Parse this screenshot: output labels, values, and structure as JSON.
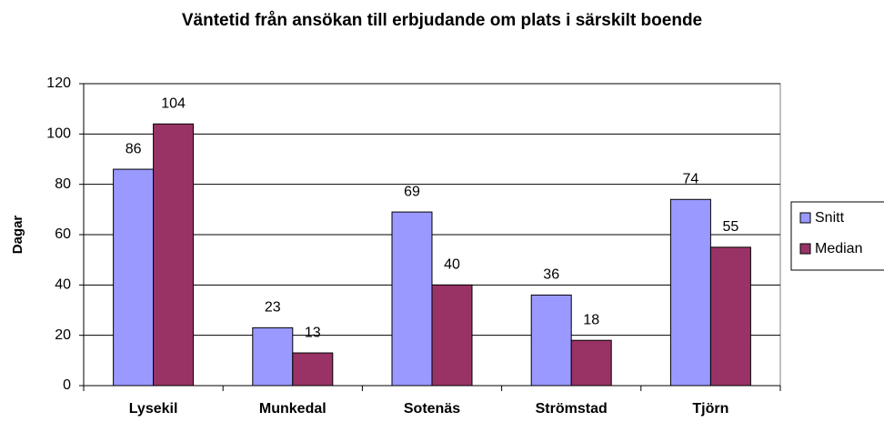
{
  "chart_data": {
    "type": "bar",
    "title": "Väntetid från ansökan till erbjudande om plats i särskilt boende",
    "y_label": "Dagar",
    "categories": [
      "Lysekil",
      "Munkedal",
      "Sotenäs",
      "Strömstad",
      "Tjörn"
    ],
    "series": [
      {
        "name": "Snitt",
        "color": "#9999ff",
        "values": [
          86,
          23,
          69,
          36,
          74
        ]
      },
      {
        "name": "Median",
        "color": "#993366",
        "values": [
          104,
          13,
          40,
          18,
          55
        ]
      }
    ],
    "ylim": [
      0,
      120
    ],
    "yticks": [
      0,
      20,
      40,
      60,
      80,
      100,
      120
    ],
    "grid": true,
    "legend": "right"
  }
}
